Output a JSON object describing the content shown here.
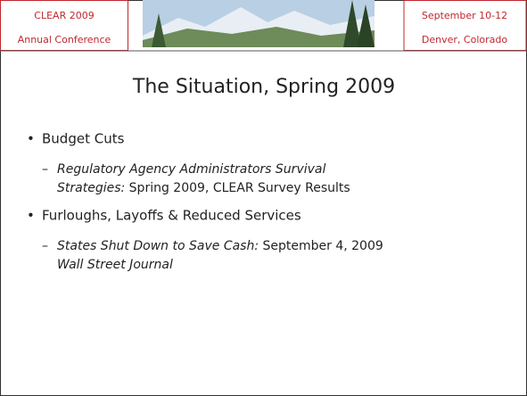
{
  "header": {
    "left": [
      "CLEAR 2009",
      "Annual Conference"
    ],
    "right": [
      "September 10-12",
      "Denver, Colorado"
    ]
  },
  "title": "The Situation, Spring 2009",
  "bullets": [
    {
      "text": "Budget Cuts",
      "sub": [
        [
          {
            "italic": "Regulatory Agency Administrators Survival"
          }
        ],
        [
          {
            "italic": "Strategies:"
          },
          {
            "plain": " Spring 2009, CLEAR Survey Results"
          }
        ]
      ]
    },
    {
      "text": "Furloughs, Layoffs & Reduced Services",
      "sub": [
        [
          {
            "italic": "States Shut Down to Save Cash:"
          },
          {
            "plain": " September 4, 2009"
          }
        ],
        [
          {
            "italic": "Wall Street Journal"
          }
        ]
      ]
    }
  ]
}
